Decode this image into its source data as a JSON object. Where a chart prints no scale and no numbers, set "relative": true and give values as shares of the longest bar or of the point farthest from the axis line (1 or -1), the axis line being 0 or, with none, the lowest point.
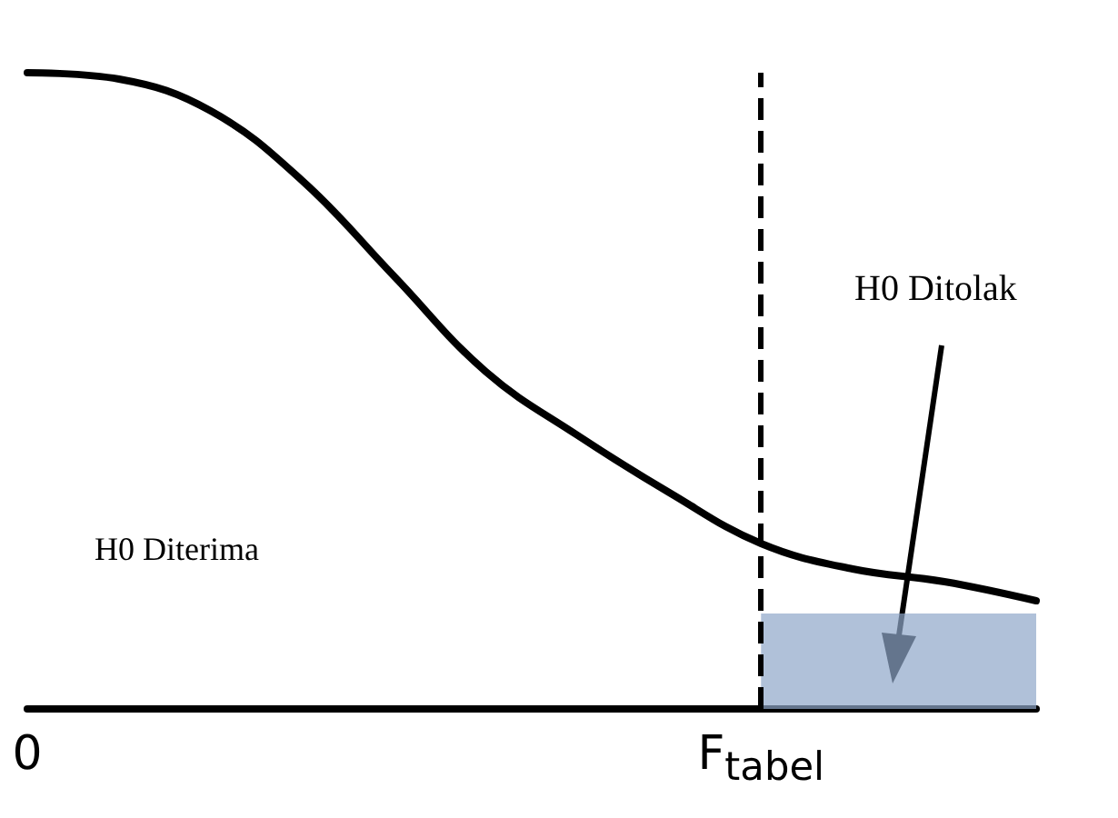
{
  "chart_data": {
    "type": "line",
    "relative": true,
    "tick_labels": "x",
    "grid": false,
    "marker": "none",
    "line_style": "solid",
    "categories": [
      "0",
      null,
      null,
      null,
      null,
      null,
      null,
      null,
      "F$_{tabel}$",
      null,
      null,
      null
    ],
    "series": [
      {
        "color": "#000000",
        "values": [
          1.0,
          0.99,
          0.94,
          0.83,
          0.68,
          0.53,
          0.43,
          0.34,
          0.26,
          0.22,
          0.2,
          0.17
        ]
      },
      {
        "type": "area",
        "name": "H0 Ditolak",
        "color": "#8fa6c9",
        "values": [
          null,
          null,
          null,
          null,
          null,
          null,
          null,
          null,
          0.15,
          0.15,
          0.15,
          0.15
        ]
      }
    ],
    "ref_lines": [
      {
        "axis": "x",
        "value": "F$_{tabel}$",
        "label": null,
        "color": "#000000",
        "line_style": "dashed"
      }
    ],
    "annotations": [
      "H0 Diterima"
    ]
  }
}
